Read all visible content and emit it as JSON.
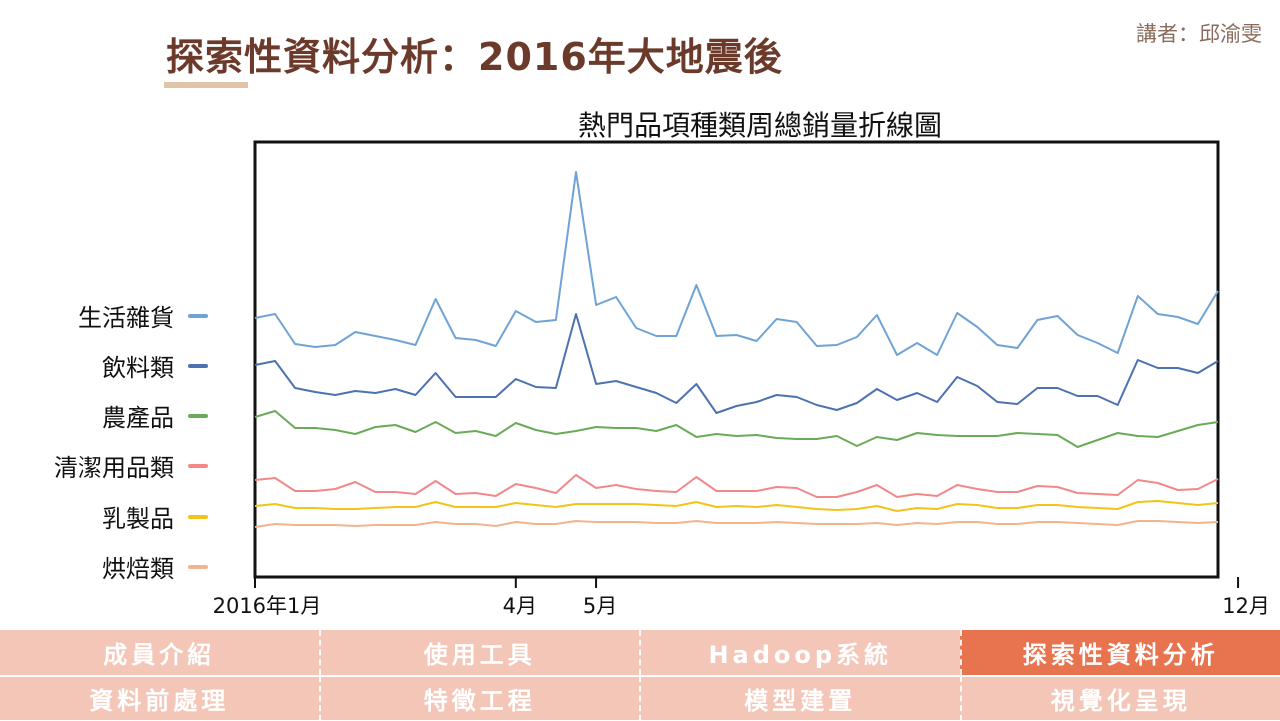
{
  "header": {
    "title": "探索性資料分析：2016年大地震後",
    "speaker": "講者：邱渝雯"
  },
  "chart_data": {
    "type": "line",
    "title": "熱門品項種類周總銷量折線圖",
    "x_ticks": [
      "2016年1月",
      "4月",
      "5月",
      "12月"
    ],
    "x_tick_weeks": [
      0,
      13,
      17,
      49
    ],
    "legend_placement": "left",
    "grid": false,
    "series": [
      {
        "name": "生活雜貨",
        "color": "#6fa3d6",
        "values": [
          318,
          314,
          344,
          347,
          345,
          332,
          336,
          340,
          345,
          299,
          338,
          340,
          346,
          311,
          322,
          320,
          172,
          305,
          297,
          328,
          336,
          336,
          285,
          336,
          335,
          341,
          319,
          322,
          346,
          345,
          337,
          315,
          355,
          343,
          355,
          313,
          327,
          345,
          348,
          320,
          316,
          335,
          343,
          353,
          296,
          314,
          317,
          324,
          291
        ]
      },
      {
        "name": "飲料類",
        "color": "#4c72b0",
        "values": [
          365,
          361,
          388,
          392,
          395,
          391,
          393,
          389,
          395,
          373,
          397,
          397,
          397,
          379,
          387,
          388,
          314,
          384,
          381,
          387,
          393,
          403,
          384,
          413,
          406,
          402,
          395,
          397,
          405,
          410,
          403,
          389,
          400,
          393,
          402,
          377,
          386,
          402,
          404,
          388,
          388,
          396,
          396,
          405,
          360,
          368,
          368,
          373,
          361
        ]
      },
      {
        "name": "農產品",
        "color": "#6aaa58",
        "values": [
          417,
          411,
          428,
          428,
          430,
          434,
          427,
          425,
          432,
          422,
          433,
          431,
          436,
          423,
          430,
          434,
          431,
          427,
          428,
          428,
          431,
          425,
          437,
          434,
          436,
          435,
          438,
          439,
          439,
          436,
          446,
          437,
          440,
          433,
          435,
          436,
          436,
          436,
          433,
          434,
          435,
          447,
          440,
          433,
          436,
          437,
          431,
          425,
          422
        ]
      },
      {
        "name": "清潔用品類",
        "color": "#f2888a",
        "values": [
          480,
          478,
          491,
          491,
          489,
          482,
          492,
          492,
          494,
          481,
          494,
          493,
          496,
          484,
          488,
          493,
          475,
          488,
          485,
          489,
          491,
          492,
          477,
          491,
          491,
          491,
          487,
          488,
          497,
          497,
          492,
          485,
          497,
          494,
          496,
          485,
          489,
          492,
          492,
          486,
          487,
          493,
          494,
          495,
          480,
          483,
          490,
          489,
          479
        ]
      },
      {
        "name": "乳製品",
        "color": "#f2c418",
        "values": [
          506,
          504,
          508,
          508,
          509,
          509,
          508,
          507,
          507,
          502,
          507,
          507,
          507,
          503,
          505,
          507,
          504,
          504,
          504,
          504,
          505,
          506,
          502,
          507,
          506,
          507,
          505,
          507,
          509,
          510,
          509,
          506,
          511,
          508,
          509,
          504,
          505,
          508,
          508,
          505,
          505,
          507,
          508,
          509,
          502,
          501,
          503,
          505,
          503
        ]
      },
      {
        "name": "烘焙類",
        "color": "#f1b48e",
        "values": [
          527,
          524,
          525,
          525,
          525,
          526,
          525,
          525,
          525,
          522,
          524,
          524,
          526,
          522,
          524,
          524,
          521,
          522,
          522,
          522,
          523,
          523,
          521,
          523,
          523,
          523,
          522,
          523,
          524,
          524,
          524,
          523,
          525,
          523,
          524,
          522,
          522,
          524,
          524,
          522,
          522,
          523,
          524,
          525,
          521,
          521,
          522,
          523,
          522
        ]
      }
    ]
  },
  "nav": {
    "row1": [
      "成員介紹",
      "使用工具",
      "Hadoop系統",
      "探索性資料分析"
    ],
    "row2": [
      "資料前處理",
      "特徵工程",
      "模型建置",
      "視覺化呈現"
    ],
    "active": "探索性資料分析"
  }
}
